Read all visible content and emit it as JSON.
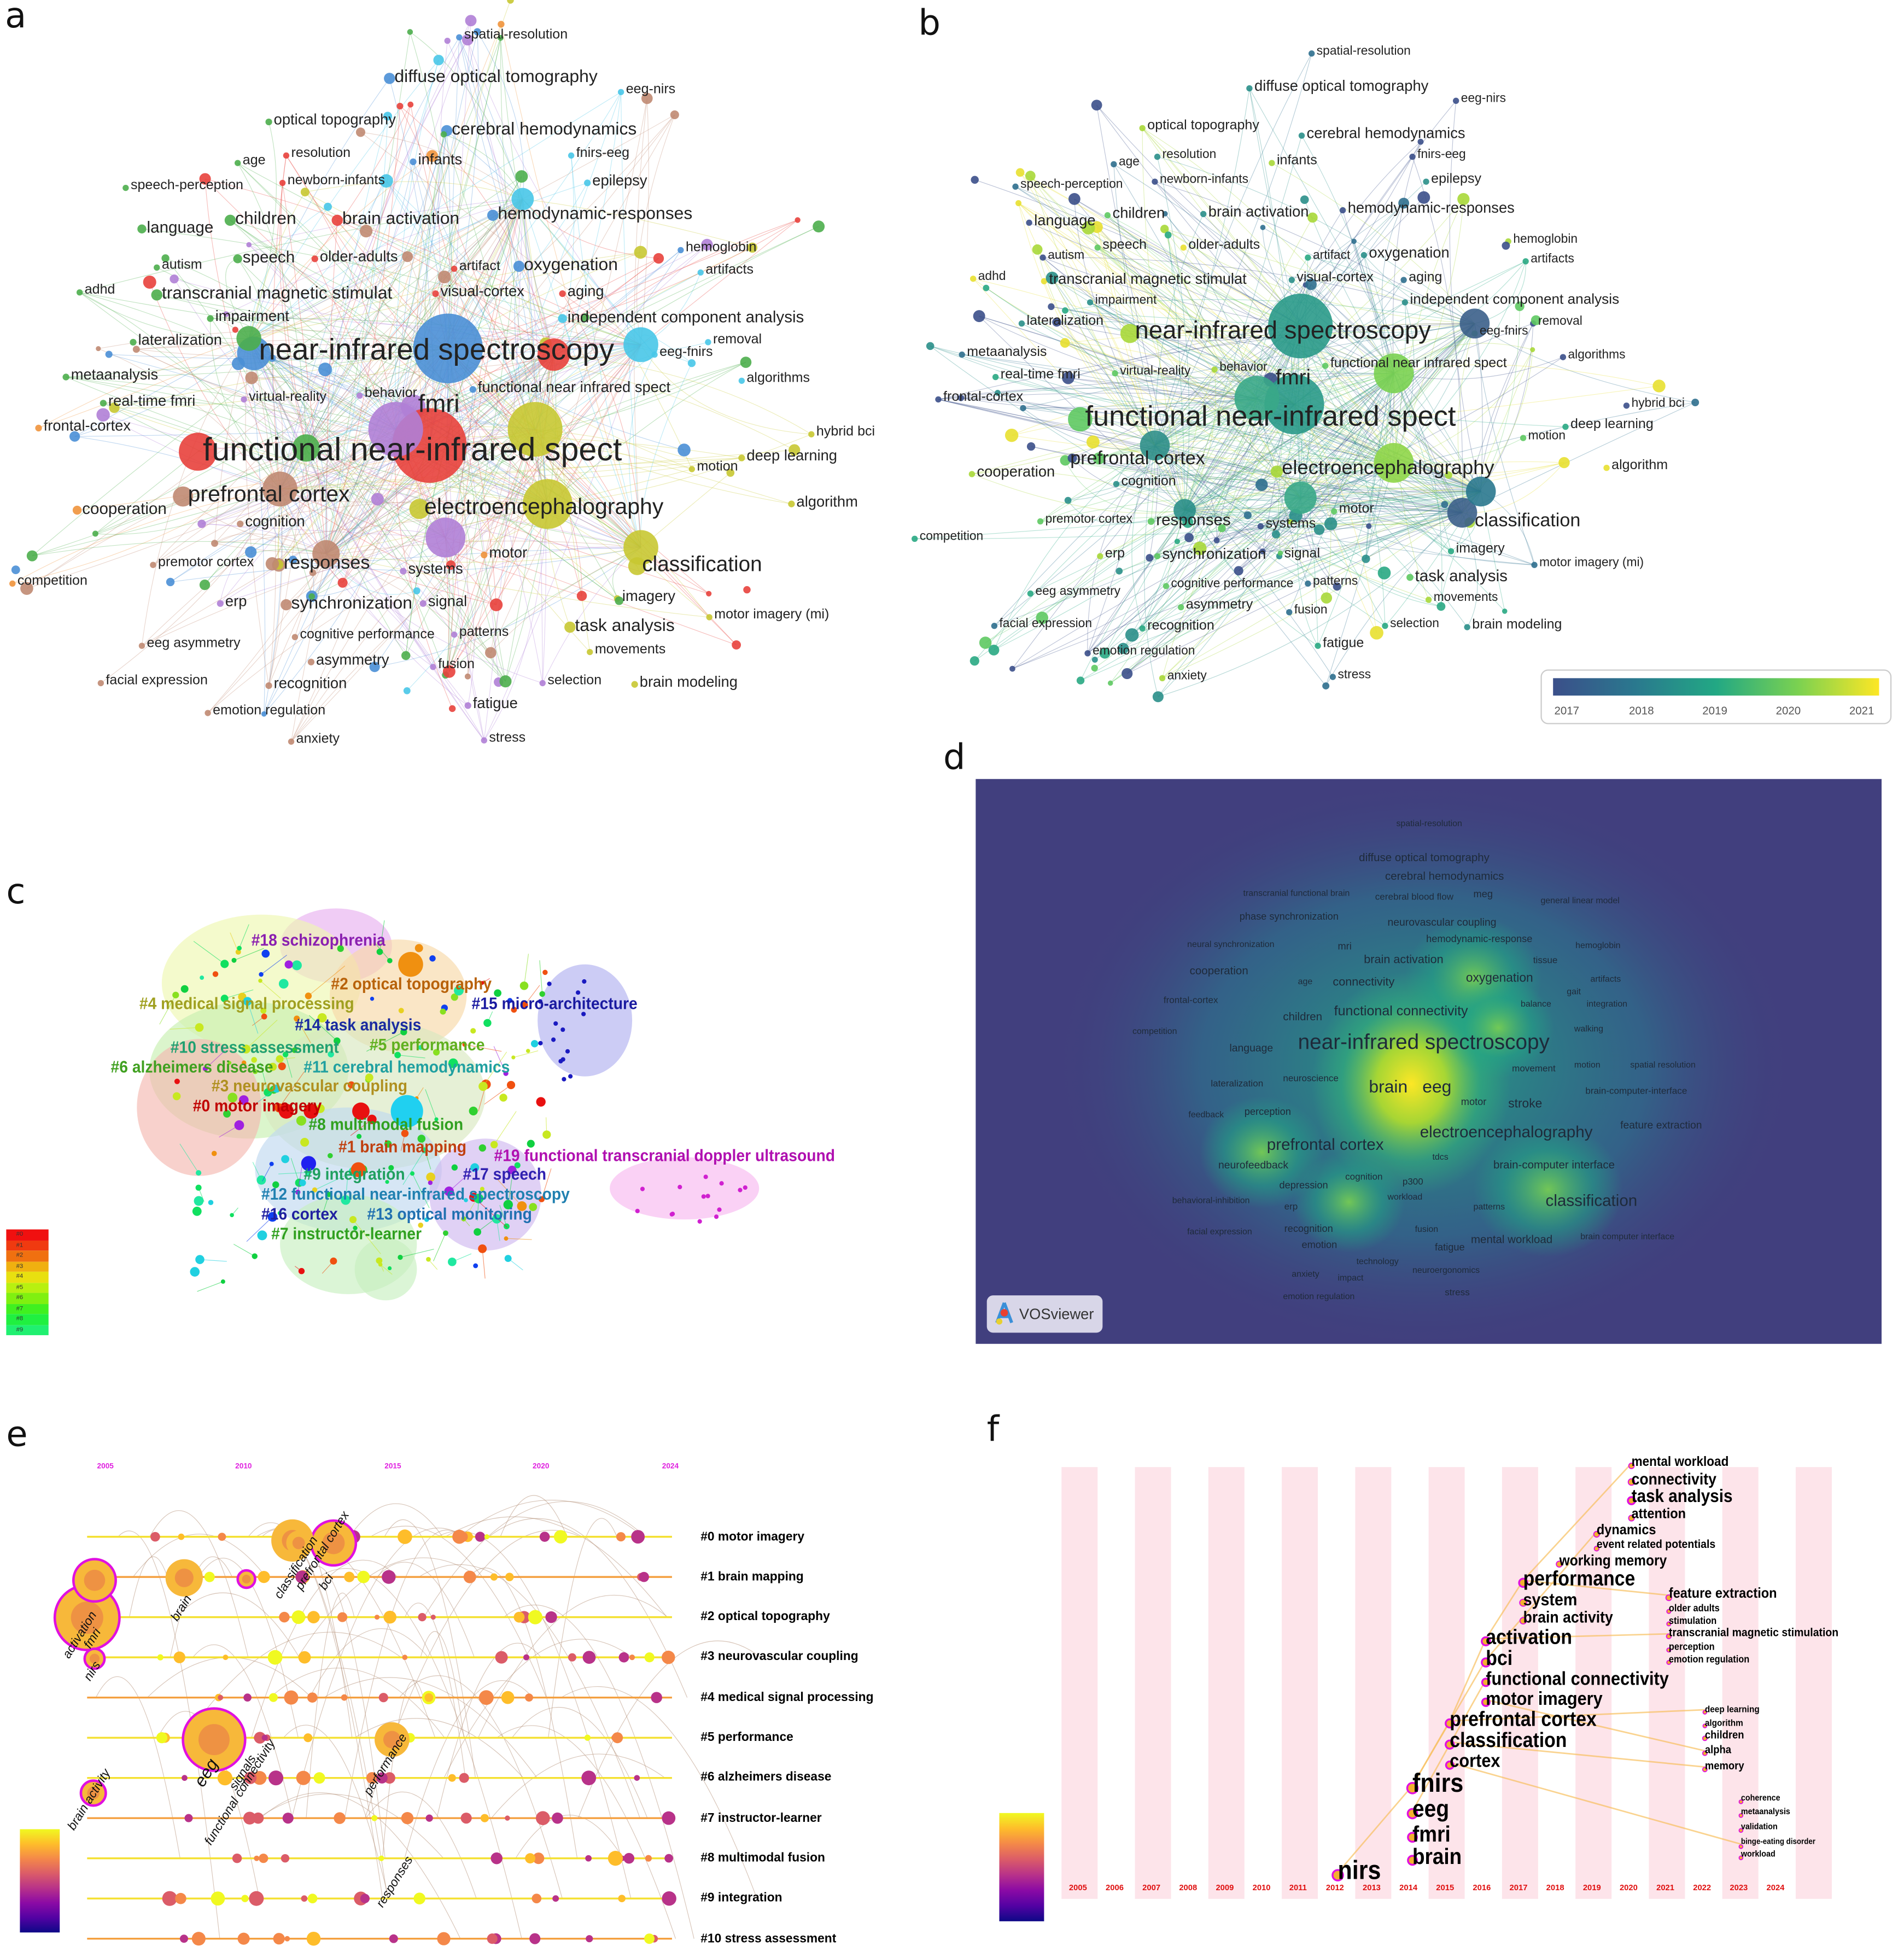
{
  "panel_letters": {
    "a": "a",
    "b": "b",
    "c": "c",
    "d": "d",
    "e": "e",
    "f": "f"
  },
  "keywords": [
    "spatial-resolution",
    "diffuse optical tomography",
    "eeg-nirs",
    "optical topography",
    "cerebral hemodynamics",
    "age",
    "resolution",
    "infants",
    "fnirs-eeg",
    "speech-perception",
    "newborn-infants",
    "epilepsy",
    "language",
    "children",
    "brain activation",
    "hemodynamic-responses",
    "hemoglobin",
    "speech",
    "older-adults",
    "artifact",
    "oxygenation",
    "artifacts",
    "autism",
    "adhd",
    "transcranial magnetic stimulat",
    "visual-cortex",
    "aging",
    "impairment",
    "independent component analysis",
    "lateralization",
    "removal",
    "near-infrared spectroscopy",
    "eeg-fnirs",
    "metaanalysis",
    "algorithms",
    "real-time fmri",
    "virtual-reality",
    "behavior",
    "fmri",
    "functional near infrared spect",
    "frontal-cortex",
    "hybrid bci",
    "functional near-infrared spect",
    "motion",
    "deep learning",
    "prefrontal cortex",
    "cooperation",
    "electroencephalography",
    "algorithm",
    "cognition",
    "motor",
    "premotor cortex",
    "responses",
    "systems",
    "classification",
    "competition",
    "erp",
    "synchronization",
    "signal",
    "imagery",
    "task analysis",
    "motor imagery (mi)",
    "cognitive performance",
    "patterns",
    "eeg asymmetry",
    "asymmetry",
    "movements",
    "fusion",
    "facial expression",
    "recognition",
    "selection",
    "brain modeling",
    "emotion regulation",
    "fatigue",
    "anxiety",
    "stress"
  ],
  "panel_a": {
    "cluster_colors": [
      "#e8413c",
      "#4cae4c",
      "#4a8fd6",
      "#c8c832",
      "#b07fd6",
      "#48c6e8",
      "#f0943c",
      "#c08a72"
    ]
  },
  "panel_b": {
    "legend_years": [
      "2017",
      "2018",
      "2019",
      "2020",
      "2021"
    ],
    "gradient": [
      "#3b4f8a",
      "#2a788e",
      "#22a884",
      "#7ad151",
      "#fde725"
    ]
  },
  "panel_c": {
    "clusters": [
      {
        "label": "#18 schizophrenia",
        "color": "#8a1fb0"
      },
      {
        "label": "#2 optical topography",
        "color": "#b8620a"
      },
      {
        "label": "#4 medical signal processing",
        "color": "#a0a020"
      },
      {
        "label": "#15 micro-architecture",
        "color": "#1a1aa0"
      },
      {
        "label": "#14 task analysis",
        "color": "#1a2aa0"
      },
      {
        "label": "#10 stress assessment",
        "color": "#20a070"
      },
      {
        "label": "#5 performance",
        "color": "#60b020"
      },
      {
        "label": "#6 alzheimers disease",
        "color": "#40a020"
      },
      {
        "label": "#11 cerebral hemodynamics",
        "color": "#20a0a0"
      },
      {
        "label": "#3 neurovascular coupling",
        "color": "#b09020"
      },
      {
        "label": "#0 motor imagery",
        "color": "#c00000"
      },
      {
        "label": "#8 multimodal fusion",
        "color": "#30a020"
      },
      {
        "label": "#1 brain mapping",
        "color": "#c04010"
      },
      {
        "label": "#19 functional transcranial doppler ultrasound",
        "color": "#b010b0"
      },
      {
        "label": "#9 integration",
        "color": "#20a060"
      },
      {
        "label": "#17 speech",
        "color": "#3020b0"
      },
      {
        "label": "#12 functional near-infrared spectroscopy",
        "color": "#2080b0"
      },
      {
        "label": "#16 cortex",
        "color": "#2020a0"
      },
      {
        "label": "#13 optical monitoring",
        "color": "#2070b0"
      },
      {
        "label": "#7 instructor-learner",
        "color": "#30a020"
      }
    ],
    "legend": [
      "#0",
      "#1",
      "#2",
      "#3",
      "#4",
      "#5",
      "#6",
      "#7",
      "#8",
      "#9"
    ]
  },
  "panel_d": {
    "labels": [
      "spatial-resolution",
      "diffuse optical tomography",
      "cerebral hemodynamics",
      "transcranial functional brain",
      "cerebral blood flow",
      "meg",
      "general linear model",
      "phase synchronization",
      "neurovascular coupling",
      "hemodynamic-response",
      "neural synchronization",
      "mri",
      "hemoglobin",
      "brain activation",
      "tissue",
      "cooperation",
      "age",
      "connectivity",
      "oxygenation",
      "artifacts",
      "gait",
      "frontal-cortex",
      "balance",
      "integration",
      "children",
      "functional connectivity",
      "walking",
      "competition",
      "language",
      "near-infrared spectroscopy",
      "movement",
      "motion",
      "spatial resolution",
      "lateralization",
      "neuroscience",
      "brain",
      "eeg",
      "motor",
      "stroke",
      "brain-computer-interface",
      "feedback",
      "perception",
      "feature extraction",
      "prefrontal cortex",
      "electroencephalography",
      "tdcs",
      "neurofeedback",
      "brain-computer interface",
      "cognition",
      "depression",
      "p300",
      "behavioral-inhibition",
      "workload",
      "erp",
      "patterns",
      "classification",
      "facial expression",
      "recognition",
      "fusion",
      "mental workload",
      "brain computer interface",
      "emotion",
      "fatigue",
      "technology",
      "anxiety",
      "impact",
      "neuroergonomics",
      "emotion regulation",
      "stress"
    ],
    "badge": "VOSviewer",
    "background": "#413f7e"
  },
  "panel_e": {
    "years": [
      "2005",
      "2010",
      "2015",
      "2020",
      "2024"
    ],
    "rows": [
      "#0 motor imagery",
      "#1 brain mapping",
      "#2 optical topography",
      "#3 neurovascular coupling",
      "#4 medical signal processing",
      "#5 performance",
      "#6 alzheimers disease",
      "#7 instructor-learner",
      "#8 multimodal fusion",
      "#9 integration",
      "#10 stress assessment"
    ],
    "keywords": [
      "fmri",
      "activation",
      "nirs",
      "brain",
      "classification",
      "prefrontal cortex",
      "bci",
      "eeg",
      "signals",
      "functional connectivity",
      "performance",
      "brain activity",
      "responses"
    ]
  },
  "panel_f": {
    "years": [
      "2005",
      "2006",
      "2007",
      "2008",
      "2009",
      "2010",
      "2011",
      "2012",
      "2013",
      "2014",
      "2015",
      "2016",
      "2017",
      "2018",
      "2019",
      "2020",
      "2021",
      "2022",
      "2023",
      "2024"
    ],
    "keywords": [
      "mental workload",
      "connectivity",
      "task analysis",
      "attention",
      "dynamics",
      "event related potentials",
      "working memory",
      "performance",
      "feature extraction",
      "system",
      "older adults",
      "brain activity",
      "stimulation",
      "transcranial magnetic stimulation",
      "activation",
      "perception",
      "emotion regulation",
      "bci",
      "functional connectivity",
      "motor imagery",
      "deep learning",
      "algorithm",
      "prefrontal cortex",
      "children",
      "classification",
      "alpha",
      "cortex",
      "memory",
      "fnirs",
      "coherence",
      "metaanalysis",
      "eeg",
      "validation",
      "fmri",
      "binge-eating disorder",
      "workload",
      "brain",
      "nirs"
    ]
  }
}
